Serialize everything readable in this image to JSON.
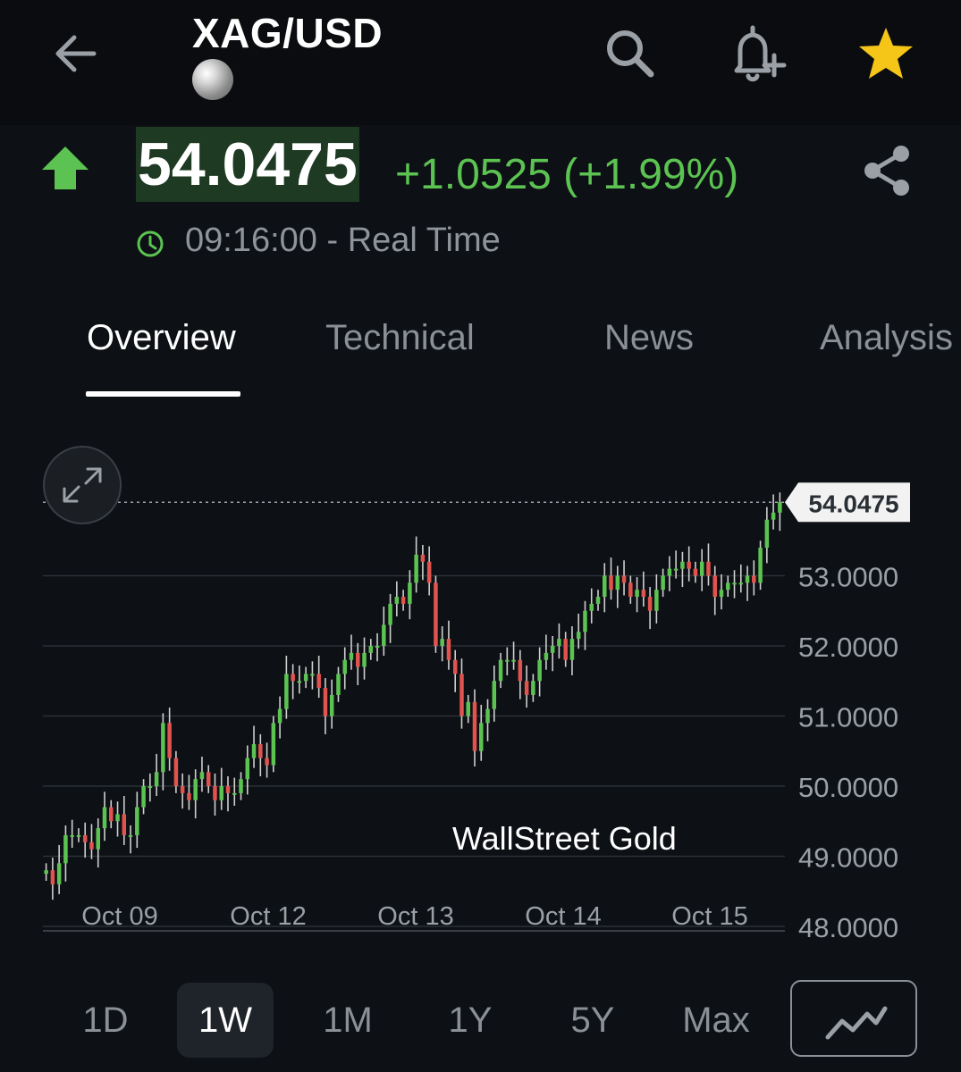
{
  "header": {
    "symbol": "XAG/USD"
  },
  "quote": {
    "price": "54.0475",
    "change": "+1.0525 (+1.99%)",
    "time": "09:16:00 - Real Time",
    "direction": "up"
  },
  "tabs": [
    {
      "label": "Overview",
      "active": true
    },
    {
      "label": "Technical",
      "active": false
    },
    {
      "label": "News",
      "active": false
    },
    {
      "label": "Analysis",
      "active": false
    }
  ],
  "watermark": "WallStreet Gold",
  "ranges": [
    {
      "label": "1D",
      "active": false
    },
    {
      "label": "1W",
      "active": true
    },
    {
      "label": "1M",
      "active": false
    },
    {
      "label": "1Y",
      "active": false
    },
    {
      "label": "5Y",
      "active": false
    },
    {
      "label": "Max",
      "active": false
    }
  ],
  "colors": {
    "up": "#5cc353",
    "down": "#e0534f",
    "background": "#0d1014",
    "star": "#f5c518"
  },
  "chart_data": {
    "type": "candlestick",
    "current_price_label": "54.0475",
    "current_price": 54.0475,
    "ylim": [
      48.0,
      54.5
    ],
    "yticks": [
      "48.0000",
      "49.0000",
      "50.0000",
      "51.0000",
      "52.0000",
      "53.0000"
    ],
    "ytick_values": [
      48,
      49,
      50,
      51,
      52,
      53
    ],
    "xticks": [
      "Oct 09",
      "Oct 12",
      "Oct 13",
      "Oct 14",
      "Oct 15"
    ],
    "grid": true,
    "closes": [
      48.8,
      48.6,
      48.9,
      49.3,
      49.3,
      49.3,
      49.2,
      49.1,
      49.4,
      49.7,
      49.5,
      49.6,
      49.3,
      49.3,
      49.7,
      50.0,
      50.0,
      50.2,
      50.9,
      50.4,
      50.0,
      49.9,
      49.8,
      50.1,
      50.2,
      50.0,
      49.8,
      50.0,
      49.9,
      49.9,
      50.1,
      50.4,
      50.6,
      50.4,
      50.3,
      50.9,
      51.1,
      51.6,
      51.5,
      51.5,
      51.6,
      51.6,
      51.4,
      51.0,
      51.3,
      51.6,
      51.8,
      51.9,
      51.7,
      51.9,
      52.0,
      52.0,
      52.3,
      52.6,
      52.7,
      52.6,
      52.9,
      53.3,
      53.2,
      52.9,
      52.0,
      52.1,
      51.8,
      51.6,
      51.0,
      51.2,
      50.5,
      50.9,
      51.1,
      51.5,
      51.8,
      51.8,
      51.8,
      51.5,
      51.3,
      51.5,
      51.8,
      51.9,
      52.0,
      52.1,
      51.8,
      52.1,
      52.2,
      52.5,
      52.6,
      52.7,
      53.0,
      52.8,
      53.0,
      52.9,
      52.7,
      52.8,
      52.7,
      52.5,
      52.8,
      53.0,
      53.1,
      53.1,
      53.2,
      53.1,
      53.0,
      53.2,
      53.0,
      52.7,
      52.8,
      52.9,
      52.9,
      52.9,
      53.0,
      52.9,
      53.4,
      53.8,
      53.9,
      54.0475
    ]
  }
}
